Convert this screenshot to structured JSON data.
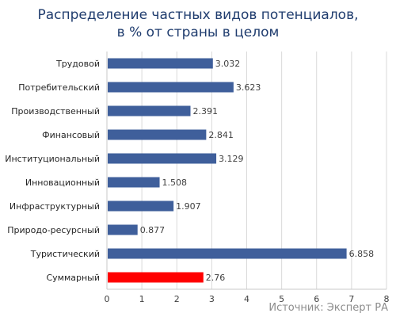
{
  "chart_data": {
    "type": "bar",
    "orientation": "horizontal",
    "title_lines": [
      "Распределение частных видов потенциалов,",
      "в % от страны в целом"
    ],
    "categories": [
      "Трудовой",
      "Потребительский",
      "Производственный",
      "Финансовый",
      "Институциональный",
      "Инновационный",
      "Инфраструктурный",
      "Природо-ресурсный",
      "Туристический",
      "Суммарный"
    ],
    "values": [
      3.032,
      3.623,
      2.391,
      2.841,
      3.129,
      1.508,
      1.907,
      0.877,
      6.858,
      2.76
    ],
    "value_labels": [
      "3.032",
      "3.623",
      "2.391",
      "2.841",
      "3.129",
      "1.508",
      "1.907",
      "0.877",
      "6.858",
      "2.76"
    ],
    "xlim": [
      0,
      8
    ],
    "x_ticks": [
      "0",
      "1",
      "2",
      "3",
      "4",
      "5",
      "6",
      "7",
      "8"
    ],
    "grid": true,
    "colors": {
      "bar": "#3f5f9b",
      "highlight": "#ff0000",
      "grid": "#d9d9d9",
      "title": "#1f3c6e"
    },
    "highlight_category": "Суммарный",
    "source": "Источник: Эксперт РА"
  }
}
